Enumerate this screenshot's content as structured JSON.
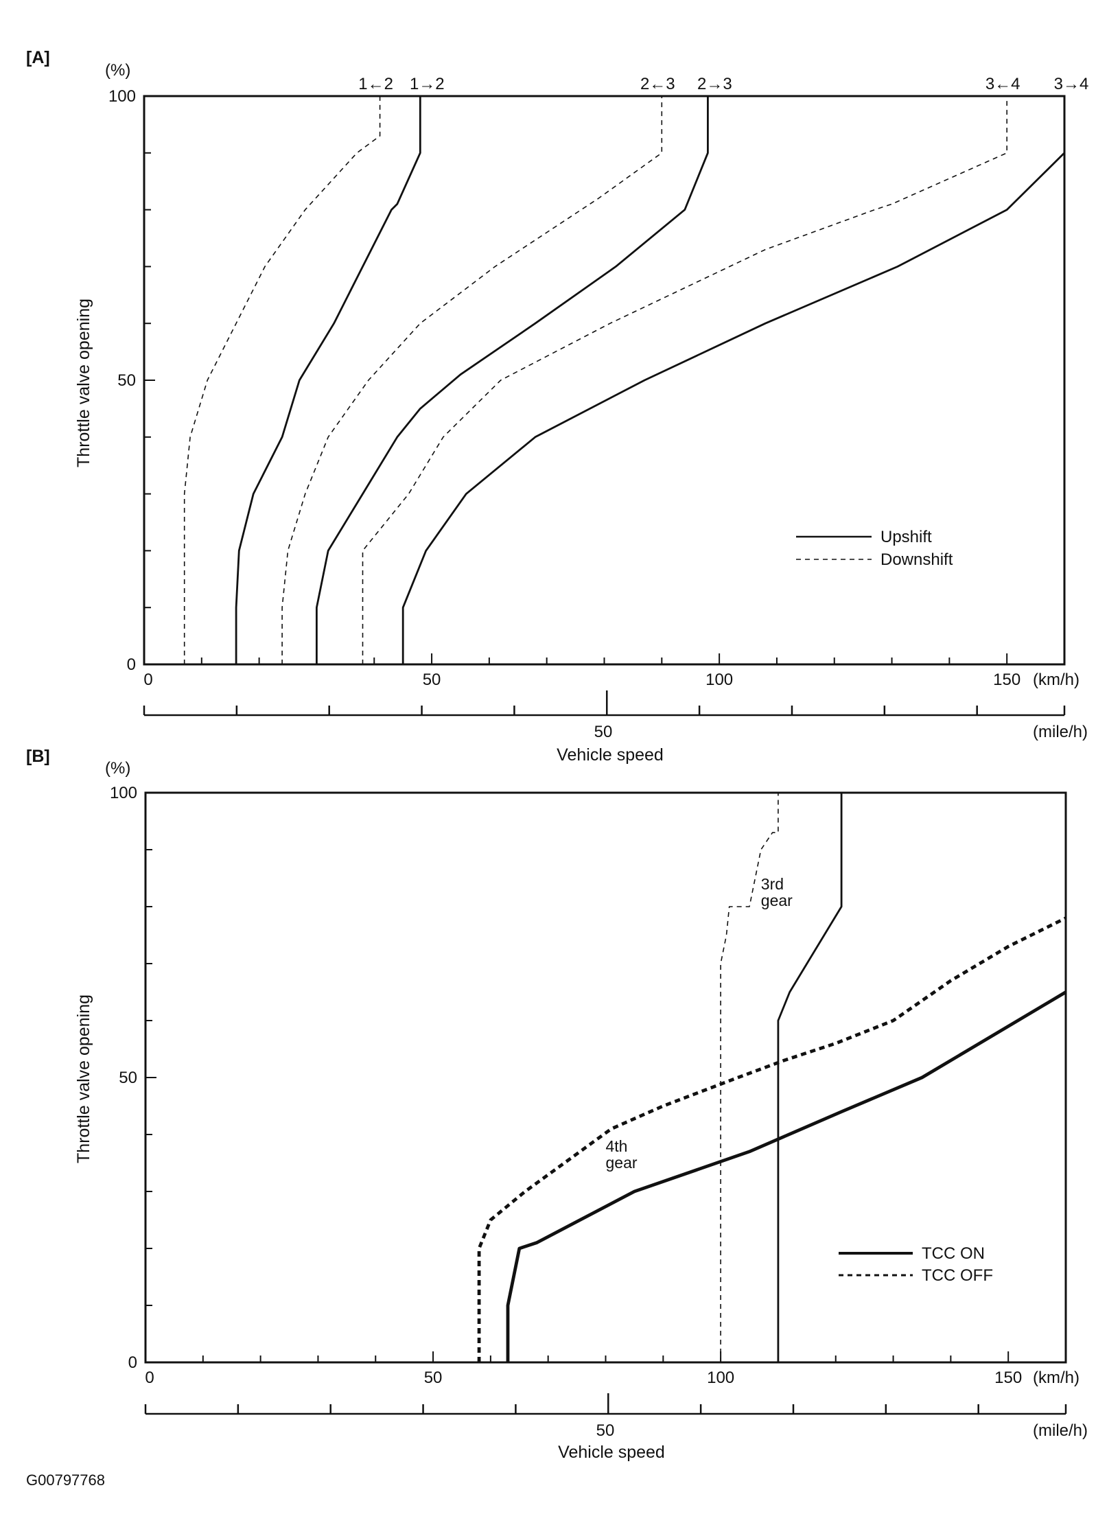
{
  "figure_code": "G00797768",
  "chart_data": [
    {
      "panel": "[A]",
      "type": "line",
      "ylabel": "Throttle valve opening",
      "yunit": "(%)",
      "xlabel": "Vehicle speed",
      "xunit_primary": "(km/h)",
      "xunit_secondary": "(mile/h)",
      "xlim": [
        0,
        160
      ],
      "ylim": [
        0,
        100
      ],
      "xticks": [
        "0",
        "50",
        "100",
        "150"
      ],
      "yticks": [
        "0",
        "50",
        "100"
      ],
      "mph_tick_label": "50",
      "legend": {
        "placement": "bottom-right",
        "entries": [
          {
            "label": "Upshift",
            "style": "solid"
          },
          {
            "label": "Downshift",
            "style": "dashed"
          }
        ]
      },
      "series": [
        {
          "label": "1←2",
          "style": "dashed",
          "weight": "thin",
          "points": [
            [
              7,
              0
            ],
            [
              7,
              30
            ],
            [
              8,
              40
            ],
            [
              11,
              50
            ],
            [
              16,
              60
            ],
            [
              21,
              70
            ],
            [
              28,
              80
            ],
            [
              37,
              90
            ],
            [
              41,
              93
            ],
            [
              41,
              100
            ]
          ]
        },
        {
          "label": "1→2",
          "style": "solid",
          "weight": "normal",
          "points": [
            [
              16,
              0
            ],
            [
              16,
              10
            ],
            [
              16.5,
              20
            ],
            [
              19,
              30
            ],
            [
              24,
              40
            ],
            [
              27,
              50
            ],
            [
              33,
              60
            ],
            [
              38,
              70
            ],
            [
              43,
              80
            ],
            [
              44,
              81
            ],
            [
              48,
              90
            ],
            [
              48,
              100
            ]
          ]
        },
        {
          "label": "2←3",
          "style": "dashed",
          "weight": "thin",
          "points": [
            [
              24,
              0
            ],
            [
              24,
              10
            ],
            [
              25,
              20
            ],
            [
              28,
              30
            ],
            [
              32,
              40
            ],
            [
              39,
              50
            ],
            [
              48,
              60
            ],
            [
              61,
              70
            ],
            [
              79,
              82
            ],
            [
              90,
              90
            ],
            [
              90,
              100
            ]
          ]
        },
        {
          "label": "2→3",
          "style": "solid",
          "weight": "normal",
          "points": [
            [
              30,
              0
            ],
            [
              30,
              10
            ],
            [
              32,
              20
            ],
            [
              38,
              30
            ],
            [
              44,
              40
            ],
            [
              48,
              45
            ],
            [
              55,
              51
            ],
            [
              68,
              60
            ],
            [
              82,
              70
            ],
            [
              94,
              80
            ],
            [
              98,
              90
            ],
            [
              98,
              100
            ]
          ]
        },
        {
          "label": "3←4",
          "style": "dashed",
          "weight": "thin",
          "points": [
            [
              38,
              0
            ],
            [
              38,
              10
            ],
            [
              38,
              20
            ],
            [
              46,
              30
            ],
            [
              52,
              40
            ],
            [
              62,
              50
            ],
            [
              81,
              60
            ],
            [
              108,
              73
            ],
            [
              127,
              80
            ],
            [
              130,
              81
            ],
            [
              150,
              90
            ],
            [
              150,
              100
            ]
          ]
        },
        {
          "label": "3→4",
          "style": "solid",
          "weight": "normal",
          "points": [
            [
              45,
              0
            ],
            [
              45,
              10
            ],
            [
              49,
              20
            ],
            [
              56,
              30
            ],
            [
              68,
              40
            ],
            [
              87,
              50
            ],
            [
              108,
              60
            ],
            [
              131,
              70
            ],
            [
              150,
              80
            ],
            [
              160,
              90
            ],
            [
              160,
              100
            ]
          ]
        }
      ]
    },
    {
      "panel": "[B]",
      "type": "line",
      "ylabel": "Throttle valve opening",
      "yunit": "(%)",
      "xlabel": "Vehicle speed",
      "xunit_primary": "(km/h)",
      "xunit_secondary": "(mile/h)",
      "xlim": [
        0,
        160
      ],
      "ylim": [
        0,
        100
      ],
      "xticks": [
        "0",
        "50",
        "100",
        "150"
      ],
      "yticks": [
        "0",
        "50",
        "100"
      ],
      "mph_tick_label": "50",
      "annotations": [
        {
          "text_lines": [
            "3rd",
            "gear"
          ],
          "at": [
            107,
            83
          ]
        },
        {
          "text_lines": [
            "4th",
            "gear"
          ],
          "at": [
            80,
            37
          ]
        }
      ],
      "legend": {
        "placement": "bottom-right",
        "entries": [
          {
            "label": "TCC ON",
            "style": "solid"
          },
          {
            "label": "TCC OFF",
            "style": "dashed"
          }
        ]
      },
      "series": [
        {
          "label": "3rd gear TCC OFF",
          "style": "dashed",
          "weight": "thin",
          "points": [
            [
              100,
              0
            ],
            [
              100,
              10
            ],
            [
              100,
              30
            ],
            [
              100,
              50
            ],
            [
              100,
              70
            ],
            [
              101,
              75
            ],
            [
              101.5,
              80
            ],
            [
              105,
              80
            ],
            [
              106,
              85
            ],
            [
              107,
              90
            ],
            [
              109,
              93
            ],
            [
              110,
              93
            ],
            [
              110,
              100
            ]
          ]
        },
        {
          "label": "3rd gear TCC ON",
          "style": "solid",
          "weight": "normal",
          "points": [
            [
              110,
              0
            ],
            [
              110,
              10
            ],
            [
              110,
              30
            ],
            [
              110,
              50
            ],
            [
              110,
              60
            ],
            [
              112,
              65
            ],
            [
              115,
              70
            ],
            [
              121,
              80
            ],
            [
              121,
              90
            ],
            [
              121,
              100
            ]
          ]
        },
        {
          "label": "4th gear TCC OFF",
          "style": "dashed",
          "weight": "thick",
          "points": [
            [
              58,
              0
            ],
            [
              58,
              10
            ],
            [
              58,
              20
            ],
            [
              60,
              25
            ],
            [
              66,
              30
            ],
            [
              81,
              41
            ],
            [
              90,
              45
            ],
            [
              103,
              50
            ],
            [
              111,
              53
            ],
            [
              120,
              56
            ],
            [
              130,
              60
            ],
            [
              140,
              67
            ],
            [
              150,
              73
            ],
            [
              160,
              78
            ]
          ]
        },
        {
          "label": "4th gear TCC ON",
          "style": "solid",
          "weight": "thick",
          "points": [
            [
              63,
              0
            ],
            [
              63,
              10
            ],
            [
              65,
              20
            ],
            [
              68,
              21
            ],
            [
              85,
              30
            ],
            [
              105,
              37
            ],
            [
              121,
              44
            ],
            [
              135,
              50
            ],
            [
              150,
              59
            ],
            [
              160,
              65
            ]
          ]
        }
      ]
    }
  ]
}
